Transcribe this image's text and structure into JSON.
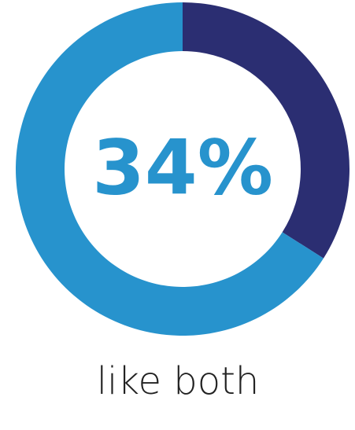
{
  "chart_data": {
    "type": "donut",
    "categories": [
      "like both",
      null
    ],
    "values": [
      34,
      66
    ],
    "value_labels": [
      "34%",
      null
    ],
    "colors": [
      "#2b2e72",
      "#2793cd"
    ]
  }
}
